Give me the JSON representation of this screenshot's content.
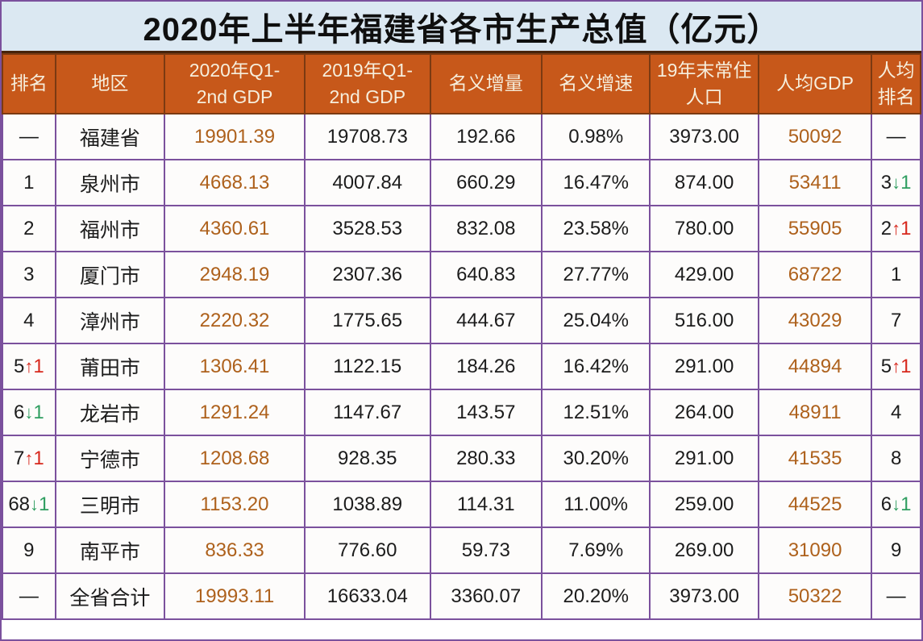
{
  "title": "2020年上半年福建省各市生产总值（亿元）",
  "colors": {
    "title_bg": "#DBE8F2",
    "header_bg": "#C7581A",
    "header_text": "#F6EEDC",
    "header_border": "#7B3A12",
    "grid_purple": "#7B519D",
    "cell_bg": "#FDFCFB",
    "text_dark": "#1C1C1C",
    "accent_orange": "#AE611C",
    "rank_up_red": "#D7281D",
    "rank_down_green": "#2F9E60"
  },
  "chart_data": {
    "type": "table",
    "title": "2020年上半年福建省各市生产总值（亿元）",
    "columns": [
      {
        "id": "rank",
        "label": "排名",
        "lines": [
          "排名"
        ]
      },
      {
        "id": "region",
        "label": "地区",
        "lines": [
          "地区"
        ]
      },
      {
        "id": "gdp_2020",
        "label": "2020年Q1-2nd GDP",
        "lines": [
          "2020年Q1-",
          "2nd GDP"
        ]
      },
      {
        "id": "gdp_2019",
        "label": "2019年Q1-2nd GDP",
        "lines": [
          "2019年Q1-",
          "2nd GDP"
        ]
      },
      {
        "id": "increment",
        "label": "名义增量",
        "lines": [
          "名义增量"
        ]
      },
      {
        "id": "growth",
        "label": "名义增速",
        "lines": [
          "名义增速"
        ]
      },
      {
        "id": "population",
        "label": "19年末常住人口",
        "lines": [
          "19年末常住",
          "人口"
        ]
      },
      {
        "id": "per_capita_gdp",
        "label": "人均GDP",
        "lines": [
          "人均GDP"
        ]
      },
      {
        "id": "pc_rank",
        "label": "人均排名",
        "lines": [
          "人均",
          "排名"
        ]
      }
    ],
    "rows": [
      {
        "rank": {
          "text": "—"
        },
        "region": "福建省",
        "gdp_2020": "19901.39",
        "gdp_2019": "19708.73",
        "increment": "192.66",
        "growth": "0.98%",
        "population": "3973.00",
        "per_capita_gdp": "50092",
        "pc_rank": {
          "text": "—"
        }
      },
      {
        "rank": {
          "text": "1"
        },
        "region": "泉州市",
        "gdp_2020": "4668.13",
        "gdp_2019": "4007.84",
        "increment": "660.29",
        "growth": "16.47%",
        "population": "874.00",
        "per_capita_gdp": "53411",
        "pc_rank": {
          "text": "3",
          "dir": "down",
          "delta": "1"
        }
      },
      {
        "rank": {
          "text": "2"
        },
        "region": "福州市",
        "gdp_2020": "4360.61",
        "gdp_2019": "3528.53",
        "increment": "832.08",
        "growth": "23.58%",
        "population": "780.00",
        "per_capita_gdp": "55905",
        "pc_rank": {
          "text": "2",
          "dir": "up",
          "delta": "1"
        }
      },
      {
        "rank": {
          "text": "3"
        },
        "region": "厦门市",
        "gdp_2020": "2948.19",
        "gdp_2019": "2307.36",
        "increment": "640.83",
        "growth": "27.77%",
        "population": "429.00",
        "per_capita_gdp": "68722",
        "pc_rank": {
          "text": "1"
        }
      },
      {
        "rank": {
          "text": "4"
        },
        "region": "漳州市",
        "gdp_2020": "2220.32",
        "gdp_2019": "1775.65",
        "increment": "444.67",
        "growth": "25.04%",
        "population": "516.00",
        "per_capita_gdp": "43029",
        "pc_rank": {
          "text": "7"
        }
      },
      {
        "rank": {
          "text": "5",
          "dir": "up",
          "delta": "1"
        },
        "region": "莆田市",
        "gdp_2020": "1306.41",
        "gdp_2019": "1122.15",
        "increment": "184.26",
        "growth": "16.42%",
        "population": "291.00",
        "per_capita_gdp": "44894",
        "pc_rank": {
          "text": "5",
          "dir": "up",
          "delta": "1"
        }
      },
      {
        "rank": {
          "text": "6",
          "dir": "down",
          "delta": "1"
        },
        "region": "龙岩市",
        "gdp_2020": "1291.24",
        "gdp_2019": "1147.67",
        "increment": "143.57",
        "growth": "12.51%",
        "population": "264.00",
        "per_capita_gdp": "48911",
        "pc_rank": {
          "text": "4"
        }
      },
      {
        "rank": {
          "text": "7",
          "dir": "up",
          "delta": "1"
        },
        "region": "宁德市",
        "gdp_2020": "1208.68",
        "gdp_2019": "928.35",
        "increment": "280.33",
        "growth": "30.20%",
        "population": "291.00",
        "per_capita_gdp": "41535",
        "pc_rank": {
          "text": "8"
        }
      },
      {
        "rank": {
          "text": "68",
          "dir": "down",
          "delta": "1"
        },
        "region": "三明市",
        "gdp_2020": "1153.20",
        "gdp_2019": "1038.89",
        "increment": "114.31",
        "growth": "11.00%",
        "population": "259.00",
        "per_capita_gdp": "44525",
        "pc_rank": {
          "text": "6",
          "dir": "down",
          "delta": "1"
        }
      },
      {
        "rank": {
          "text": "9"
        },
        "region": "南平市",
        "gdp_2020": "836.33",
        "gdp_2019": "776.60",
        "increment": "59.73",
        "growth": "7.69%",
        "population": "269.00",
        "per_capita_gdp": "31090",
        "pc_rank": {
          "text": "9"
        }
      },
      {
        "rank": {
          "text": "—"
        },
        "region": "全省合计",
        "gdp_2020": "19993.11",
        "gdp_2019": "16633.04",
        "increment": "3360.07",
        "growth": "20.20%",
        "population": "3973.00",
        "per_capita_gdp": "50322",
        "pc_rank": {
          "text": "—"
        }
      }
    ]
  }
}
